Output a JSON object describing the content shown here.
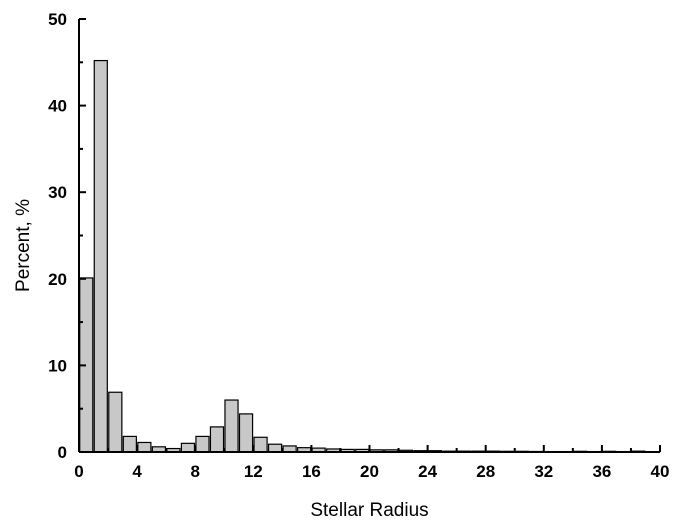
{
  "chart_data": {
    "type": "bar",
    "title": "",
    "xlabel": "Stellar Radius",
    "ylabel": "Percent, %",
    "xlim": [
      0,
      40
    ],
    "ylim": [
      0,
      50
    ],
    "grid": false,
    "bar_color": "#c8c8c8",
    "bar_width": 0.9,
    "x_ticks": [
      "0",
      "4",
      "8",
      "12",
      "16",
      "20",
      "24",
      "28",
      "32",
      "36",
      "40"
    ],
    "y_ticks": [
      "0",
      "10",
      "20",
      "30",
      "40",
      "50"
    ],
    "x": [
      0.5,
      1.5,
      2.5,
      3.5,
      4.5,
      5.5,
      6.5,
      7.5,
      8.5,
      9.5,
      10.5,
      11.5,
      12.5,
      13.5,
      14.5,
      15.5,
      16.5,
      17.5,
      18.5,
      19.5,
      20.5,
      21.5,
      22.5,
      23.5,
      24.5,
      25.5,
      26.5,
      27.5,
      28.5,
      29.5,
      30.5,
      31.5,
      32.5,
      33.5,
      34.5,
      35.5,
      36.5,
      37.5,
      38.5
    ],
    "values": [
      20.1,
      45.2,
      6.9,
      1.8,
      1.1,
      0.6,
      0.4,
      1.0,
      1.8,
      2.9,
      6.0,
      4.4,
      1.7,
      0.9,
      0.7,
      0.5,
      0.45,
      0.35,
      0.3,
      0.3,
      0.25,
      0.25,
      0.2,
      0.15,
      0.15,
      0.1,
      0.1,
      0.1,
      0.1,
      0.08,
      0.08,
      0.06,
      0.05,
      0.05,
      0.08,
      0.05,
      0.08,
      0.05,
      0.1
    ]
  }
}
